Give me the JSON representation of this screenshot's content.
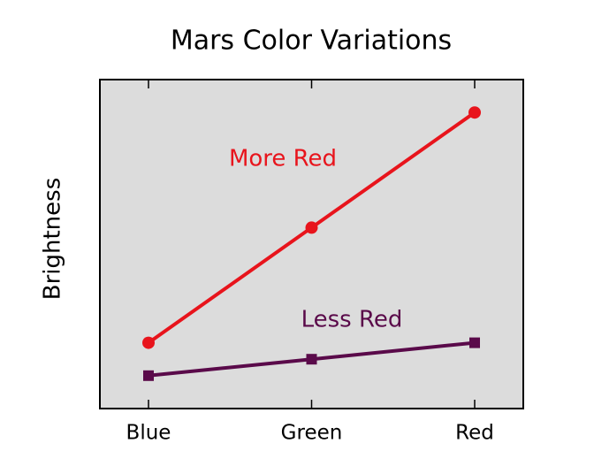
{
  "chart_data": {
    "type": "line",
    "title": "Mars Color Variations",
    "y_label": "Brightness",
    "categories": [
      "Blue",
      "Green",
      "Red"
    ],
    "series": [
      {
        "name": "More Red",
        "color": "#e8141c",
        "marker": "circle",
        "values": [
          2,
          5.5,
          9
        ]
      },
      {
        "name": "Less Red",
        "color": "#5a0a4a",
        "marker": "square",
        "values": [
          1,
          1.5,
          2
        ]
      }
    ],
    "ylim": [
      0,
      10
    ],
    "background": "#dcdcdc"
  }
}
